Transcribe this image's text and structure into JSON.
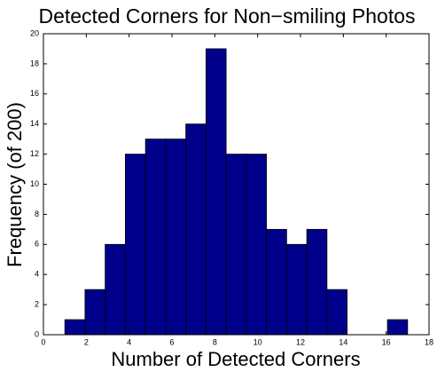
{
  "chart_data": {
    "type": "histogram",
    "title": "Detected Corners for Non−smiling Photos",
    "x_label": "Number of Detected Corners",
    "y_label": "Frequency (of 200)",
    "bins": [
      1,
      1.9412,
      2.8824,
      3.8235,
      4.7647,
      5.7059,
      6.6471,
      7.5882,
      8.5294,
      9.4706,
      10.4118,
      11.3529,
      12.2941,
      13.2353,
      14.1765,
      15.1176,
      16.0588,
      17
    ],
    "values": [
      1,
      3,
      6,
      12,
      13,
      13,
      14,
      19,
      12,
      12,
      7,
      6,
      7,
      3,
      0,
      0,
      1
    ],
    "color": "#00008b",
    "xlim": [
      0,
      18
    ],
    "xticks": [
      0,
      2,
      4,
      6,
      8,
      10,
      12,
      14,
      16,
      18
    ],
    "ylim": [
      0,
      20
    ],
    "yticks": [
      0,
      2,
      4,
      6,
      8,
      10,
      12,
      14,
      16,
      18,
      20
    ]
  }
}
